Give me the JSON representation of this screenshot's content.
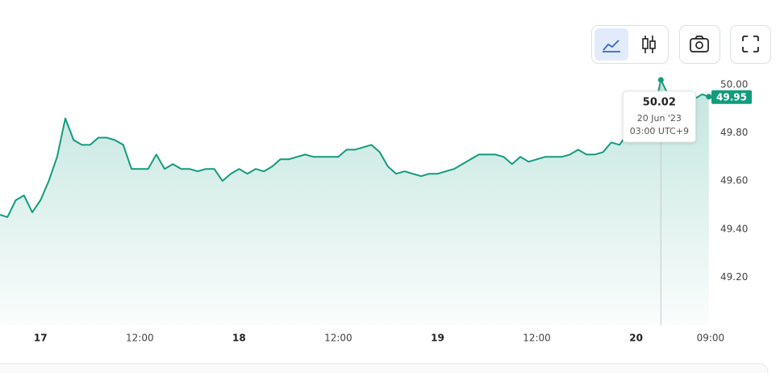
{
  "chart_data": {
    "type": "area",
    "x": [
      -4.9,
      -4,
      -3,
      -2,
      -1,
      0,
      1,
      2,
      3,
      4,
      5,
      6,
      7,
      8,
      9,
      10,
      11,
      12,
      13,
      14,
      15,
      16,
      17,
      18,
      19,
      20,
      21,
      22,
      23,
      24,
      25,
      26,
      27,
      28,
      29,
      30,
      31,
      32,
      33,
      34,
      35,
      36,
      37,
      38,
      39,
      40,
      41,
      42,
      43,
      44,
      45,
      46,
      47,
      48,
      49,
      50,
      51,
      52,
      53,
      54,
      55,
      56,
      57,
      58,
      59,
      60,
      61,
      62,
      63,
      64,
      65,
      66,
      67,
      68,
      69,
      70,
      71,
      72,
      73,
      74,
      75,
      76,
      77,
      78,
      79,
      80,
      80.8
    ],
    "series": [
      {
        "color": "#139b7e",
        "values": [
          49.46,
          49.45,
          49.52,
          49.54,
          49.47,
          49.52,
          49.6,
          49.7,
          49.86,
          49.77,
          49.75,
          49.75,
          49.78,
          49.78,
          49.77,
          49.75,
          49.65,
          49.65,
          49.65,
          49.71,
          49.65,
          49.67,
          49.65,
          49.65,
          49.64,
          49.65,
          49.65,
          49.6,
          49.63,
          49.65,
          49.63,
          49.65,
          49.64,
          49.66,
          49.69,
          49.69,
          49.7,
          49.71,
          49.7,
          49.7,
          49.7,
          49.7,
          49.73,
          49.73,
          49.74,
          49.75,
          49.72,
          49.66,
          49.63,
          49.64,
          49.63,
          49.62,
          49.63,
          49.63,
          49.64,
          49.65,
          49.67,
          49.69,
          49.71,
          49.71,
          49.71,
          49.7,
          49.67,
          49.7,
          49.68,
          49.69,
          49.7,
          49.7,
          49.7,
          49.71,
          49.73,
          49.71,
          49.71,
          49.72,
          49.76,
          49.75,
          49.8,
          49.81,
          49.83,
          49.86,
          50.02,
          49.95,
          49.95,
          49.93,
          49.94,
          49.96,
          49.95
        ]
      }
    ],
    "xlim": [
      -4.9,
      81.5
    ],
    "ylim": [
      49.0,
      50.05
    ],
    "xticks": [
      {
        "value": 0,
        "label": "17"
      },
      {
        "value": 12,
        "label": "12:00"
      },
      {
        "value": 24,
        "label": "18"
      },
      {
        "value": 36,
        "label": "12:00"
      },
      {
        "value": 48,
        "label": "19"
      },
      {
        "value": 60,
        "label": "12:00"
      },
      {
        "value": 72,
        "label": "20"
      },
      {
        "value": 81,
        "label": "09:00"
      }
    ],
    "yticks": [
      {
        "value": 50,
        "label": "50.00"
      },
      {
        "value": 49.8,
        "label": "49.80"
      },
      {
        "value": 49.6,
        "label": "49.60"
      },
      {
        "value": 49.4,
        "label": "49.40"
      },
      {
        "value": 49.2,
        "label": "49.20"
      }
    ],
    "last_price": {
      "value": 49.95,
      "label": "49.95"
    },
    "tooltip": {
      "x": 75,
      "value": 50.02,
      "date": "20 Jun '23",
      "time": "03:00 UTC+9"
    }
  }
}
